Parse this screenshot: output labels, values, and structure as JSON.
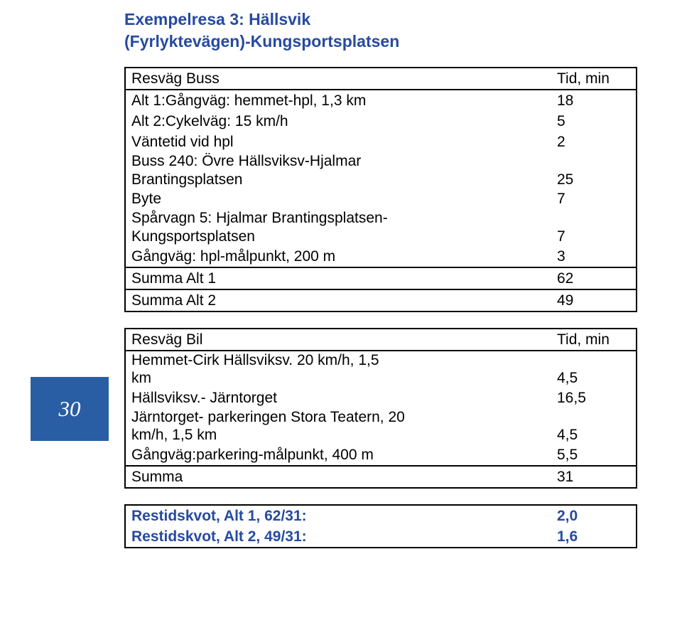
{
  "title": {
    "line1": "Exempelresa 3: Hällsvik",
    "line2": "(Fyrlyktevägen)-Kungsportsplatsen"
  },
  "sideBadge": "30",
  "colors": {
    "accent_blue": "#264aa0",
    "badge_bg": "#2a5ea4",
    "badge_fg": "#ffffff",
    "border": "#000000",
    "text": "#000000",
    "background": "#ffffff"
  },
  "busTable": {
    "header": {
      "label": "Resväg Buss",
      "value": "Tid, min"
    },
    "rows": [
      {
        "label": "Alt 1:Gångväg: hemmet-hpl, 1,3 km",
        "value": "18"
      },
      {
        "label": "Alt 2:Cykelväg: 15 km/h",
        "value": "5"
      },
      {
        "label": "Väntetid vid hpl",
        "value": "2"
      },
      {
        "label_line1": "Buss 240: Övre Hällsviksv-Hjalmar",
        "label_line2": "Brantingsplatsen",
        "value": "25"
      },
      {
        "label": "Byte",
        "value": "7"
      },
      {
        "label_line1": "Spårvagn 5: Hjalmar Brantingsplatsen-",
        "label_line2": "Kungsportsplatsen",
        "value": "7"
      },
      {
        "label": "Gångväg: hpl-målpunkt, 200 m",
        "value": "3"
      }
    ],
    "totals": [
      {
        "label": "Summa Alt 1",
        "value": "62"
      },
      {
        "label": "Summa Alt 2",
        "value": "49"
      }
    ]
  },
  "carTable": {
    "header": {
      "label": "Resväg Bil",
      "value": "Tid, min"
    },
    "rows": [
      {
        "label_line1": "Hemmet-Cirk Hällsviksv. 20 km/h, 1,5",
        "label_line2": "km",
        "value": "4,5"
      },
      {
        "label": "Hällsviksv.- Järntorget",
        "value": "16,5"
      },
      {
        "label_line1": "Järntorget- parkeringen Stora Teatern, 20",
        "label_line2": "km/h, 1,5 km",
        "value": "4,5"
      },
      {
        "label": "Gångväg:parkering-målpunkt, 400 m",
        "value": "5,5"
      }
    ],
    "total": {
      "label": "Summa",
      "value": "31"
    }
  },
  "ratios": {
    "r1": {
      "label": "Restidskvot, Alt 1, 62/31:",
      "value": "2,0"
    },
    "r2": {
      "label": "Restidskvot, Alt 2, 49/31:",
      "value": "1,6"
    }
  }
}
